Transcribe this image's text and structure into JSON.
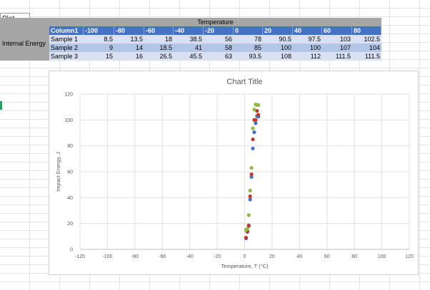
{
  "namebox": "Plot Area",
  "table": {
    "group_header": "Temperature",
    "row_group_label": "Internal Energy",
    "columns": [
      "Column1",
      "-100",
      "-80",
      "-60",
      "-40",
      "-20",
      "0",
      "20",
      "40",
      "60",
      "80"
    ],
    "rows": [
      {
        "label": "Sample 1",
        "values": [
          "8.5",
          "13.5",
          "18",
          "38.5",
          "56",
          "78",
          "90.5",
          "97.5",
          "103",
          "102.5"
        ]
      },
      {
        "label": "Sample 2",
        "values": [
          "9",
          "14",
          "18.5",
          "41",
          "58",
          "85",
          "100",
          "100",
          "107",
          "104"
        ]
      },
      {
        "label": "Sample 3",
        "values": [
          "15",
          "16",
          "26.5",
          "45.5",
          "63",
          "93.5",
          "108",
          "112",
          "111.5",
          "111.5"
        ]
      }
    ]
  },
  "chart_data": {
    "type": "scatter",
    "title": "Chart Title",
    "xlabel": "Temperature, T (°C)",
    "ylabel": "Impact Energy, J",
    "xlim": [
      -120,
      120
    ],
    "ylim": [
      0,
      120
    ],
    "xticks": [
      -120,
      -100,
      -80,
      -60,
      -40,
      -20,
      0,
      20,
      40,
      60,
      80,
      100,
      120
    ],
    "yticks": [
      0,
      20,
      40,
      60,
      80,
      100,
      120
    ],
    "grid": true,
    "series": [
      {
        "color": "#4472c4",
        "points": [
          [
            1,
            8.5
          ],
          [
            2,
            13.5
          ],
          [
            3,
            18
          ],
          [
            4,
            38.5
          ],
          [
            5,
            56
          ],
          [
            6,
            78
          ],
          [
            7,
            90.5
          ],
          [
            8,
            97.5
          ],
          [
            9,
            103
          ],
          [
            10,
            102.5
          ]
        ]
      },
      {
        "color": "#c0392b",
        "points": [
          [
            1,
            9
          ],
          [
            2,
            14
          ],
          [
            3,
            18.5
          ],
          [
            4,
            41
          ],
          [
            5,
            58
          ],
          [
            6,
            85
          ],
          [
            7,
            100
          ],
          [
            8,
            100
          ],
          [
            9,
            107
          ],
          [
            10,
            104
          ]
        ]
      },
      {
        "color": "#8fbc3f",
        "points": [
          [
            1,
            15
          ],
          [
            2,
            16
          ],
          [
            3,
            26.5
          ],
          [
            4,
            45.5
          ],
          [
            5,
            63
          ],
          [
            6,
            93.5
          ],
          [
            7,
            108
          ],
          [
            8,
            112
          ],
          [
            9,
            111.5
          ],
          [
            10,
            111.5
          ]
        ]
      }
    ]
  }
}
